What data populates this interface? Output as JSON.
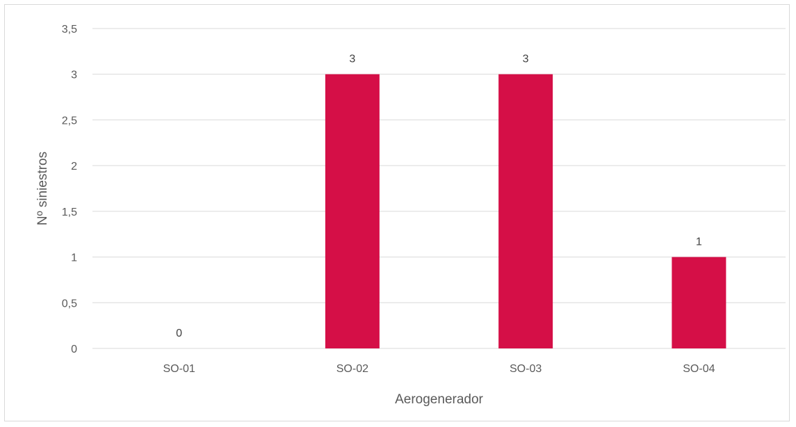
{
  "chart_data": {
    "type": "bar",
    "categories": [
      "SO-01",
      "SO-02",
      "SO-03",
      "SO-04"
    ],
    "values": [
      0,
      3,
      3,
      1
    ],
    "data_labels": [
      "0",
      "3",
      "3",
      "1"
    ],
    "xlabel": "Aerogenerador",
    "ylabel": "Nº siniestros",
    "ylim": [
      0,
      3.5
    ],
    "yticks": [
      0,
      0.5,
      1,
      1.5,
      2,
      2.5,
      3,
      3.5
    ],
    "ytick_labels": [
      "0",
      "0,5",
      "1",
      "1,5",
      "2",
      "2,5",
      "3",
      "3,5"
    ],
    "grid": true,
    "legend": "none",
    "bar_color": "#d50f47",
    "grid_color": "#d9d9d9"
  }
}
